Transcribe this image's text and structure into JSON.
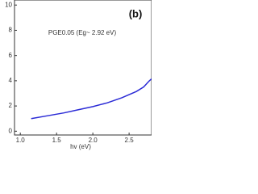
{
  "chart_data": {
    "type": "line",
    "annotation": "PGE0.05 (Eg~ 2.92 eV)",
    "panel_label": "(b)",
    "x_label": "hv (eV)",
    "series": [
      {
        "name": "PGE0.05",
        "color": "#2b2bd6",
        "x": [
          1.15,
          1.4,
          1.6,
          1.8,
          2.0,
          2.2,
          2.4,
          2.5,
          2.6,
          2.7,
          2.78,
          2.81
        ],
        "values": [
          1.0,
          1.25,
          1.45,
          1.7,
          1.95,
          2.25,
          2.65,
          2.9,
          3.15,
          3.5,
          4.0,
          4.15
        ]
      }
    ],
    "xlim": [
      0.92,
      2.81
    ],
    "xticks": [
      {
        "value": 1,
        "label": "1.0"
      },
      1.5,
      {
        "value": 2,
        "label": "2.0"
      },
      2.5
    ],
    "ylim": [
      -0.3,
      10.4
    ],
    "yticks": [
      0,
      2,
      4,
      6,
      8,
      10
    ]
  }
}
